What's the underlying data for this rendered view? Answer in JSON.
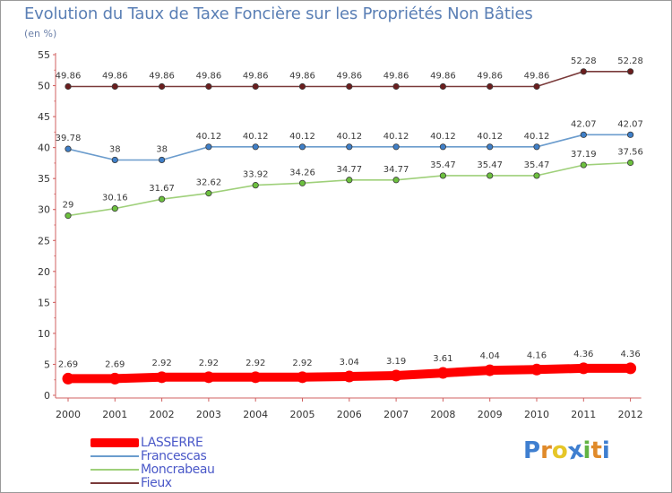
{
  "header": {
    "title": "Evolution du Taux de Taxe Foncière sur les Propriétés Non Bâties",
    "unit": "(en %)"
  },
  "brand": {
    "letters": [
      "P",
      "r",
      "o",
      "x",
      "i",
      "t",
      "i"
    ],
    "colors": [
      "#3f7fd0",
      "#e08a2a",
      "#e6c628",
      "#3f7fd0",
      "#62b443",
      "#e08a2a",
      "#3f7fd0"
    ]
  },
  "chart_data": {
    "type": "line",
    "title": "Evolution du Taux de Taxe Foncière sur les Propriétés Non Bâties",
    "ylabel": "(en %)",
    "xlabel": "",
    "ylim": [
      0,
      55
    ],
    "yticks": [
      0,
      5,
      10,
      15,
      20,
      25,
      30,
      35,
      40,
      45,
      50,
      55
    ],
    "grid": false,
    "legend_position": "bottom-left",
    "x": [
      "2000",
      "2001",
      "2002",
      "2003",
      "2004",
      "2005",
      "2006",
      "2007",
      "2008",
      "2009",
      "2010",
      "2011",
      "2012"
    ],
    "series": [
      {
        "name": "LASSERRE",
        "values": [
          2.69,
          2.69,
          2.92,
          2.92,
          2.92,
          2.92,
          3.04,
          3.19,
          3.61,
          4.04,
          4.16,
          4.36,
          4.36
        ],
        "labels": [
          "2.69",
          "2.69",
          "2.92",
          "2.92",
          "2.92",
          "2.92",
          "3.04",
          "3.19",
          "3.61",
          "4.04",
          "4.16",
          "4.36",
          "4.36"
        ],
        "color": "#ff0000",
        "marker": "#ff0000",
        "bold": true
      },
      {
        "name": "Francescas",
        "values": [
          39.78,
          38,
          38,
          40.12,
          40.12,
          40.12,
          40.12,
          40.12,
          40.12,
          40.12,
          40.12,
          42.07,
          42.07
        ],
        "labels": [
          "39.78",
          "38",
          "38",
          "40.12",
          "40.12",
          "40.12",
          "40.12",
          "40.12",
          "40.12",
          "40.12",
          "40.12",
          "42.07",
          "42.07"
        ],
        "color": "#6b9ccd",
        "marker": "#3f7fc8",
        "bold": false
      },
      {
        "name": "Moncrabeau",
        "values": [
          29,
          30.16,
          31.67,
          32.62,
          33.92,
          34.26,
          34.77,
          34.77,
          35.47,
          35.47,
          35.47,
          37.19,
          37.56
        ],
        "labels": [
          "29",
          "30.16",
          "31.67",
          "32.62",
          "33.92",
          "34.26",
          "34.77",
          "34.77",
          "35.47",
          "35.47",
          "35.47",
          "37.19",
          "37.56"
        ],
        "color": "#9fd07a",
        "marker": "#6cc03e",
        "bold": false
      },
      {
        "name": "Fieux",
        "values": [
          49.86,
          49.86,
          49.86,
          49.86,
          49.86,
          49.86,
          49.86,
          49.86,
          49.86,
          49.86,
          49.86,
          52.28,
          52.28
        ],
        "labels": [
          "49.86",
          "49.86",
          "49.86",
          "49.86",
          "49.86",
          "49.86",
          "49.86",
          "49.86",
          "49.86",
          "49.86",
          "49.86",
          "52.28",
          "52.28"
        ],
        "color": "#7a3a3a",
        "marker": "#6b1e1e",
        "bold": false
      }
    ]
  }
}
